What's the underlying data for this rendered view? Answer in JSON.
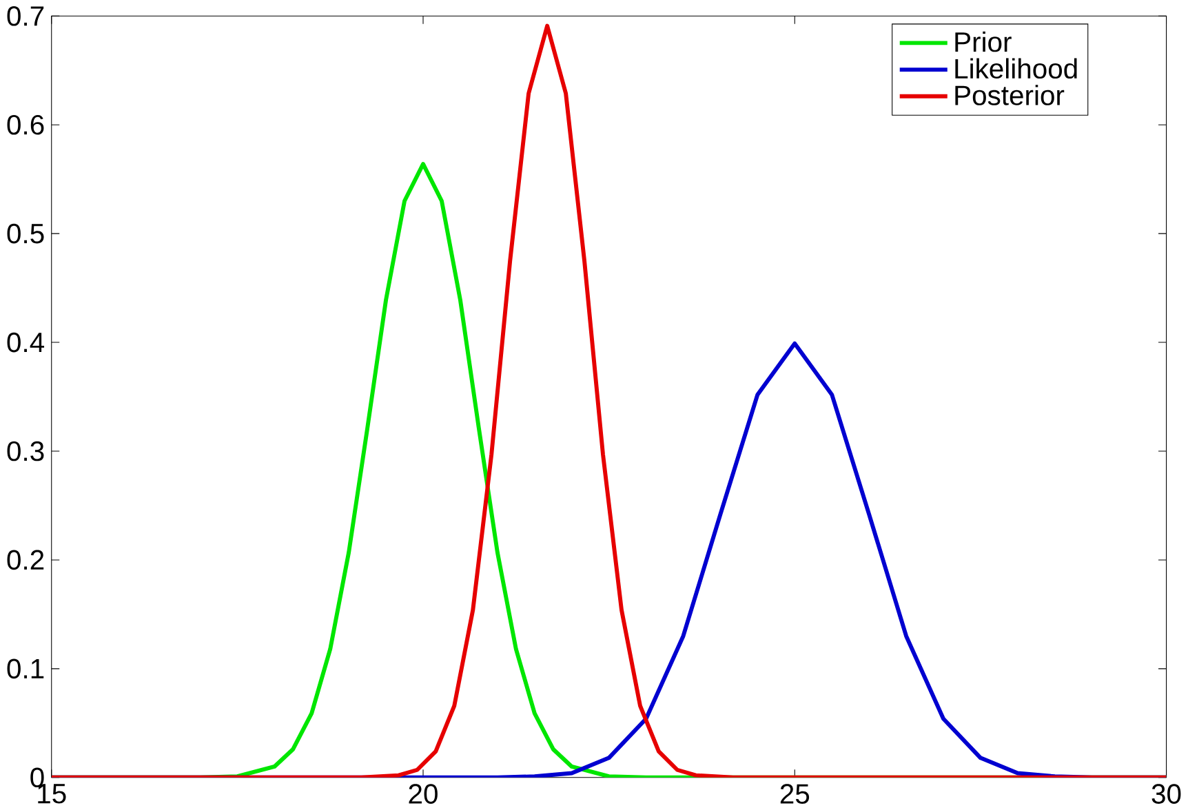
{
  "chart_data": {
    "type": "line",
    "x": [
      15,
      17,
      17.5,
      18,
      18.25,
      18.5,
      18.75,
      19,
      19.25,
      19.5,
      19.75,
      20,
      20.25,
      20.5,
      20.75,
      21,
      21.25,
      21.5,
      21.75,
      22,
      22.5,
      23,
      30
    ],
    "series": [
      {
        "name": "Prior",
        "color": "#00e600",
        "values": [
          0,
          0,
          0.001,
          0.01,
          0.026,
          0.059,
          0.118,
          0.207,
          0.321,
          0.439,
          0.53,
          0.564,
          0.53,
          0.439,
          0.321,
          0.207,
          0.118,
          0.059,
          0.026,
          0.01,
          0.001,
          0,
          0
        ]
      },
      {
        "name": "Likelihood",
        "color": "#0000d0",
        "x": [
          15,
          21,
          21.5,
          22,
          22.5,
          23,
          23.5,
          24,
          24.5,
          25,
          25.5,
          26,
          26.5,
          27,
          27.5,
          28,
          28.5,
          29,
          30
        ],
        "values": [
          0,
          0,
          0.001,
          0.004,
          0.018,
          0.054,
          0.13,
          0.242,
          0.352,
          0.399,
          0.352,
          0.242,
          0.13,
          0.054,
          0.018,
          0.004,
          0.001,
          0,
          0
        ]
      },
      {
        "name": "Posterior",
        "color": "#e60000",
        "x": [
          15,
          19.17,
          19.67,
          19.92,
          20.17,
          20.42,
          20.67,
          20.92,
          21.17,
          21.42,
          21.67,
          21.92,
          22.17,
          22.42,
          22.67,
          22.92,
          23.17,
          23.42,
          23.67,
          24.17,
          30
        ],
        "values": [
          0,
          0,
          0.002,
          0.007,
          0.024,
          0.066,
          0.154,
          0.297,
          0.475,
          0.629,
          0.691,
          0.629,
          0.475,
          0.297,
          0.154,
          0.066,
          0.024,
          0.007,
          0.002,
          0,
          0
        ]
      }
    ],
    "xlim": [
      15,
      30
    ],
    "xticks": [
      15,
      20,
      25,
      30
    ],
    "ylim": [
      0,
      0.7
    ],
    "yticks": [
      0,
      0.1,
      0.2,
      0.3,
      0.4,
      0.5,
      0.6,
      0.7
    ],
    "legend": "top right",
    "grid": false,
    "marker": "none",
    "line_style": "solid"
  }
}
